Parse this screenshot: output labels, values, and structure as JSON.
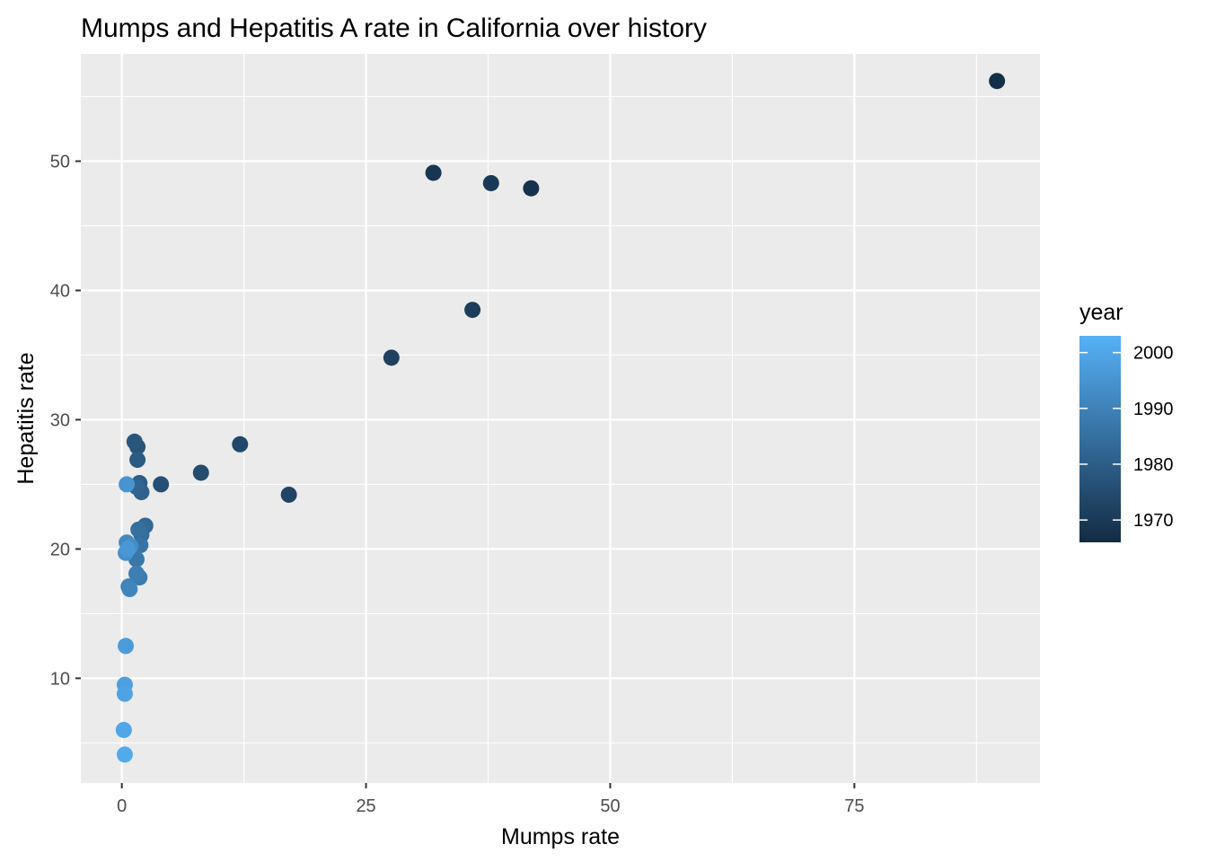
{
  "chart_data": {
    "type": "scatter",
    "title": "Mumps and Hepatitis A rate in California over history",
    "xlabel": "Mumps rate",
    "ylabel": "Hepatitis rate",
    "xlim": [
      -4.2,
      94.0
    ],
    "ylim": [
      1.9,
      58.3
    ],
    "x_ticks": [
      0,
      25,
      50,
      75
    ],
    "y_ticks": [
      10,
      20,
      30,
      40,
      50
    ],
    "grid": true,
    "legend": {
      "title": "year",
      "type": "colorbar",
      "position": "right",
      "range": [
        1966,
        2003
      ],
      "ticks": [
        1970,
        1980,
        1990,
        2000
      ],
      "color_low": "#132b43",
      "color_high": "#56b1f7"
    },
    "points": [
      {
        "x": 89.6,
        "y": 56.2,
        "year": 1967
      },
      {
        "x": 41.9,
        "y": 47.9,
        "year": 1968
      },
      {
        "x": 31.9,
        "y": 49.1,
        "year": 1969
      },
      {
        "x": 37.8,
        "y": 48.3,
        "year": 1970
      },
      {
        "x": 35.9,
        "y": 38.5,
        "year": 1971
      },
      {
        "x": 27.6,
        "y": 34.8,
        "year": 1972
      },
      {
        "x": 17.1,
        "y": 24.2,
        "year": 1973
      },
      {
        "x": 12.1,
        "y": 28.1,
        "year": 1974
      },
      {
        "x": 8.1,
        "y": 25.9,
        "year": 1975
      },
      {
        "x": 4.0,
        "y": 25.0,
        "year": 1976
      },
      {
        "x": 1.3,
        "y": 28.3,
        "year": 1978
      },
      {
        "x": 1.6,
        "y": 27.9,
        "year": 1977
      },
      {
        "x": 1.6,
        "y": 26.9,
        "year": 1979
      },
      {
        "x": 1.8,
        "y": 25.1,
        "year": 1980
      },
      {
        "x": 2.0,
        "y": 24.4,
        "year": 1981
      },
      {
        "x": 1.5,
        "y": 24.8,
        "year": 1982
      },
      {
        "x": 2.4,
        "y": 21.8,
        "year": 1983
      },
      {
        "x": 2.0,
        "y": 21.1,
        "year": 1984
      },
      {
        "x": 1.7,
        "y": 21.5,
        "year": 1985
      },
      {
        "x": 1.9,
        "y": 20.3,
        "year": 1986
      },
      {
        "x": 1.5,
        "y": 19.2,
        "year": 1987
      },
      {
        "x": 1.8,
        "y": 17.8,
        "year": 1988
      },
      {
        "x": 1.5,
        "y": 18.1,
        "year": 1989
      },
      {
        "x": 0.7,
        "y": 17.1,
        "year": 1990
      },
      {
        "x": 0.8,
        "y": 16.9,
        "year": 1991
      },
      {
        "x": 0.5,
        "y": 20.5,
        "year": 1992
      },
      {
        "x": 0.9,
        "y": 20.2,
        "year": 1993
      },
      {
        "x": 0.4,
        "y": 19.7,
        "year": 1994
      },
      {
        "x": 0.5,
        "y": 25.0,
        "year": 1995
      },
      {
        "x": 0.6,
        "y": 20.0,
        "year": 1996
      },
      {
        "x": 0.4,
        "y": 12.5,
        "year": 1997
      },
      {
        "x": 0.3,
        "y": 9.5,
        "year": 1998
      },
      {
        "x": 0.3,
        "y": 8.8,
        "year": 1999
      },
      {
        "x": 0.2,
        "y": 6.0,
        "year": 2000
      },
      {
        "x": 0.3,
        "y": 4.1,
        "year": 2001
      }
    ]
  }
}
